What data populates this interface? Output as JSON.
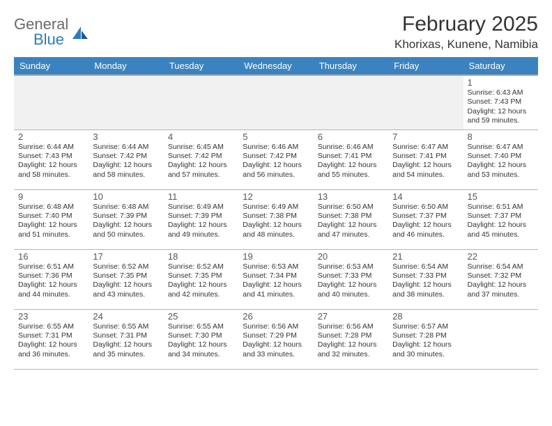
{
  "logo": {
    "word1": "General",
    "word2": "Blue"
  },
  "header": {
    "month": "February 2025",
    "location": "Khorixas, Kunene, Namibia"
  },
  "day_labels": [
    "Sunday",
    "Monday",
    "Tuesday",
    "Wednesday",
    "Thursday",
    "Friday",
    "Saturday"
  ],
  "colors": {
    "header_bg": "#3b83c0",
    "header_text": "#ffffff",
    "body_text": "#333333",
    "logo_gray": "#6a6a6a",
    "logo_blue": "#2d7bc0",
    "border": "#b5b5b5",
    "empty_bg": "#f1f1f1",
    "page_bg": "#ffffff"
  },
  "typography": {
    "month_fontsize": 30,
    "location_fontsize": 17,
    "dayheader_fontsize": 13,
    "daynum_fontsize": 13,
    "cell_fontsize": 10.5
  },
  "calendar": {
    "first_day_column": 6,
    "days": [
      {
        "n": 1,
        "sunrise": "6:43 AM",
        "sunset": "7:43 PM",
        "daylight": "12 hours and 59 minutes."
      },
      {
        "n": 2,
        "sunrise": "6:44 AM",
        "sunset": "7:43 PM",
        "daylight": "12 hours and 58 minutes."
      },
      {
        "n": 3,
        "sunrise": "6:44 AM",
        "sunset": "7:42 PM",
        "daylight": "12 hours and 58 minutes."
      },
      {
        "n": 4,
        "sunrise": "6:45 AM",
        "sunset": "7:42 PM",
        "daylight": "12 hours and 57 minutes."
      },
      {
        "n": 5,
        "sunrise": "6:46 AM",
        "sunset": "7:42 PM",
        "daylight": "12 hours and 56 minutes."
      },
      {
        "n": 6,
        "sunrise": "6:46 AM",
        "sunset": "7:41 PM",
        "daylight": "12 hours and 55 minutes."
      },
      {
        "n": 7,
        "sunrise": "6:47 AM",
        "sunset": "7:41 PM",
        "daylight": "12 hours and 54 minutes."
      },
      {
        "n": 8,
        "sunrise": "6:47 AM",
        "sunset": "7:40 PM",
        "daylight": "12 hours and 53 minutes."
      },
      {
        "n": 9,
        "sunrise": "6:48 AM",
        "sunset": "7:40 PM",
        "daylight": "12 hours and 51 minutes."
      },
      {
        "n": 10,
        "sunrise": "6:48 AM",
        "sunset": "7:39 PM",
        "daylight": "12 hours and 50 minutes."
      },
      {
        "n": 11,
        "sunrise": "6:49 AM",
        "sunset": "7:39 PM",
        "daylight": "12 hours and 49 minutes."
      },
      {
        "n": 12,
        "sunrise": "6:49 AM",
        "sunset": "7:38 PM",
        "daylight": "12 hours and 48 minutes."
      },
      {
        "n": 13,
        "sunrise": "6:50 AM",
        "sunset": "7:38 PM",
        "daylight": "12 hours and 47 minutes."
      },
      {
        "n": 14,
        "sunrise": "6:50 AM",
        "sunset": "7:37 PM",
        "daylight": "12 hours and 46 minutes."
      },
      {
        "n": 15,
        "sunrise": "6:51 AM",
        "sunset": "7:37 PM",
        "daylight": "12 hours and 45 minutes."
      },
      {
        "n": 16,
        "sunrise": "6:51 AM",
        "sunset": "7:36 PM",
        "daylight": "12 hours and 44 minutes."
      },
      {
        "n": 17,
        "sunrise": "6:52 AM",
        "sunset": "7:35 PM",
        "daylight": "12 hours and 43 minutes."
      },
      {
        "n": 18,
        "sunrise": "6:52 AM",
        "sunset": "7:35 PM",
        "daylight": "12 hours and 42 minutes."
      },
      {
        "n": 19,
        "sunrise": "6:53 AM",
        "sunset": "7:34 PM",
        "daylight": "12 hours and 41 minutes."
      },
      {
        "n": 20,
        "sunrise": "6:53 AM",
        "sunset": "7:33 PM",
        "daylight": "12 hours and 40 minutes."
      },
      {
        "n": 21,
        "sunrise": "6:54 AM",
        "sunset": "7:33 PM",
        "daylight": "12 hours and 38 minutes."
      },
      {
        "n": 22,
        "sunrise": "6:54 AM",
        "sunset": "7:32 PM",
        "daylight": "12 hours and 37 minutes."
      },
      {
        "n": 23,
        "sunrise": "6:55 AM",
        "sunset": "7:31 PM",
        "daylight": "12 hours and 36 minutes."
      },
      {
        "n": 24,
        "sunrise": "6:55 AM",
        "sunset": "7:31 PM",
        "daylight": "12 hours and 35 minutes."
      },
      {
        "n": 25,
        "sunrise": "6:55 AM",
        "sunset": "7:30 PM",
        "daylight": "12 hours and 34 minutes."
      },
      {
        "n": 26,
        "sunrise": "6:56 AM",
        "sunset": "7:29 PM",
        "daylight": "12 hours and 33 minutes."
      },
      {
        "n": 27,
        "sunrise": "6:56 AM",
        "sunset": "7:28 PM",
        "daylight": "12 hours and 32 minutes."
      },
      {
        "n": 28,
        "sunrise": "6:57 AM",
        "sunset": "7:28 PM",
        "daylight": "12 hours and 30 minutes."
      }
    ]
  },
  "labels": {
    "sunrise": "Sunrise:",
    "sunset": "Sunset:",
    "daylight": "Daylight:"
  }
}
